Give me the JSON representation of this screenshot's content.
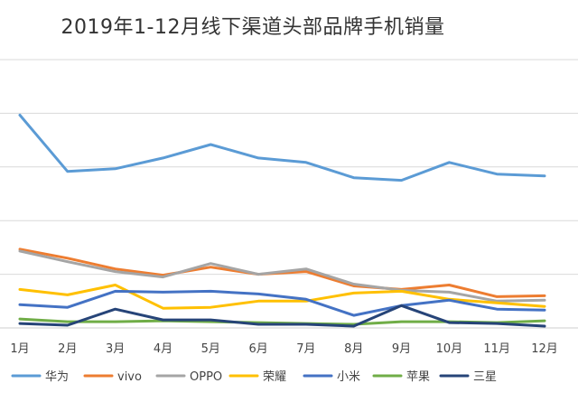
{
  "chart_data": {
    "type": "line",
    "title": "2019年1-12月线下渠道头部品牌手机销量",
    "categories": [
      "1月",
      "2月",
      "3月",
      "4月",
      "5月",
      "6月",
      "7月",
      "8月",
      "9月",
      "10月",
      "11月",
      "12月"
    ],
    "ylim": [
      0,
      300
    ],
    "grid": true,
    "legend": "bottom",
    "xlabel": "",
    "ylabel": "",
    "series": [
      {
        "name": "华为",
        "color": "#5B9BD5",
        "values": [
          238,
          175,
          178,
          190,
          205,
          190,
          185,
          168,
          165,
          185,
          172,
          170
        ]
      },
      {
        "name": "vivo",
        "color": "#ED7D31",
        "values": [
          88,
          78,
          66,
          59,
          68,
          60,
          63,
          47,
          43,
          48,
          35,
          36
        ]
      },
      {
        "name": "OPPO",
        "color": "#A5A5A5",
        "values": [
          86,
          74,
          63,
          57,
          72,
          60,
          66,
          49,
          42,
          40,
          30,
          31
        ]
      },
      {
        "name": "荣耀",
        "color": "#FFC000",
        "values": [
          43,
          37,
          48,
          22,
          23,
          30,
          30,
          39,
          41,
          32,
          28,
          24
        ]
      },
      {
        "name": "小米",
        "color": "#4472C4",
        "values": [
          26,
          23,
          41,
          40,
          41,
          38,
          32,
          14,
          25,
          31,
          21,
          20
        ]
      },
      {
        "name": "苹果",
        "color": "#70AD47",
        "values": [
          10,
          7,
          7,
          8,
          7,
          6,
          5,
          4,
          7,
          7,
          6,
          8
        ]
      },
      {
        "name": "三星",
        "color": "#264478",
        "values": [
          5,
          3,
          21,
          9,
          9,
          4,
          4,
          2,
          25,
          6,
          5,
          2
        ]
      }
    ]
  }
}
